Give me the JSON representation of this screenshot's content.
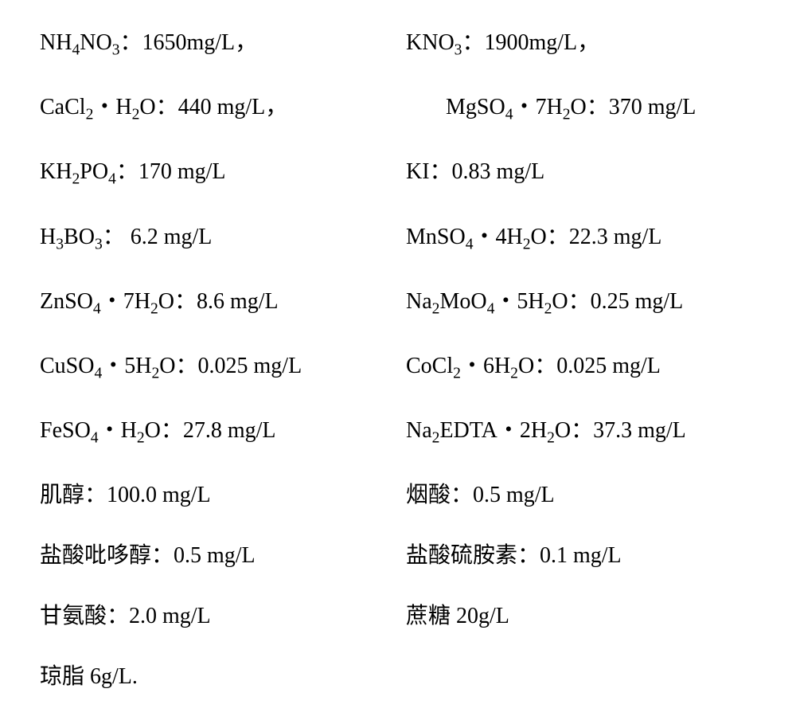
{
  "rows": [
    {
      "l_html": "NH<sub>4</sub>NO<sub>3</sub>：1650mg/L，",
      "r_html": "KNO<sub>3</sub>：1900mg/L，",
      "r_indent": false
    },
    {
      "l_html": "CaCl<sub>2</sub>・H<sub>2</sub>O：440 mg/L，",
      "r_html": "MgSO<sub>4</sub>・7H<sub>2</sub>O：370 mg/L",
      "r_indent": true
    },
    {
      "l_html": "KH<sub>2</sub>PO<sub>4</sub>：170 mg/L",
      "r_html": "KI：0.83 mg/L",
      "r_indent": false
    },
    {
      "l_html": "H<sub>3</sub>BO<sub>3</sub>： 6.2 mg/L",
      "r_html": "MnSO<sub>4</sub>・4H<sub>2</sub>O：22.3 mg/L",
      "r_indent": false
    },
    {
      "l_html": "ZnSO<sub>4</sub>・7H<sub>2</sub>O：8.6 mg/L",
      "r_html": "Na<sub>2</sub>MoO<sub>4</sub>・5H<sub>2</sub>O：0.25 mg/L",
      "r_indent": false
    },
    {
      "l_html": "CuSO<sub>4</sub>・5H<sub>2</sub>O：0.025 mg/L",
      "r_html": "CoCl<sub>2</sub>・6H<sub>2</sub>O：0.025 mg/L",
      "r_indent": false
    },
    {
      "l_html": "FeSO<sub>4</sub>・H<sub>2</sub>O：27.8 mg/L",
      "r_html": "Na<sub>2</sub>EDTA・2H<sub>2</sub>O：37.3 mg/L",
      "r_indent": false
    },
    {
      "l_html": "肌醇：100.0 mg/L",
      "r_html": "烟酸：0.5 mg/L",
      "r_indent": false
    },
    {
      "l_html": "盐酸吡哆醇：0.5 mg/L",
      "r_html": "盐酸硫胺素：0.1 mg/L",
      "r_indent": false
    },
    {
      "l_html": "甘氨酸：2.0 mg/L",
      "r_html": "蔗糖 20g/L",
      "r_indent": false
    }
  ],
  "last": "琼脂 6g/L."
}
